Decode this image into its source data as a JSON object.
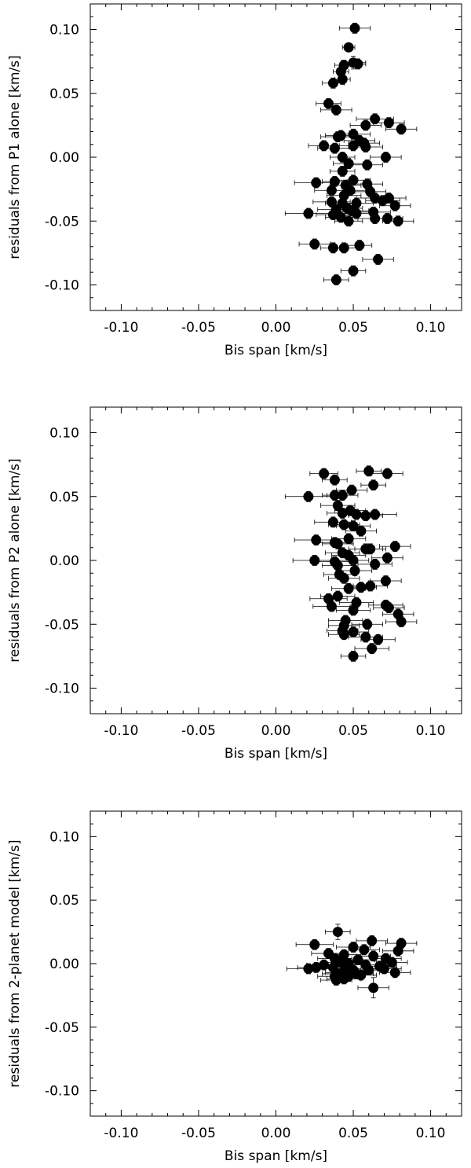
{
  "chart_data": [
    {
      "type": "scatter",
      "xlabel": "Bis span [km/s]",
      "ylabel": "residuals from P1 alone [km/s]",
      "xlim": [
        -0.12,
        0.12
      ],
      "ylim": [
        -0.12,
        0.12
      ],
      "xticks": [
        "-0.10",
        "-0.05",
        "0.00",
        "0.05",
        "0.10"
      ],
      "yticks": [
        "0.10",
        "0.05",
        "0.00",
        "-0.05",
        "-0.10"
      ],
      "points": [
        {
          "x": 0.051,
          "y": 0.101,
          "xerr": 0.01,
          "yerr": 0.004
        },
        {
          "x": 0.047,
          "y": 0.086,
          "xerr": 0.004,
          "yerr": 0.003
        },
        {
          "x": 0.044,
          "y": 0.072,
          "xerr": 0.006,
          "yerr": 0.004
        },
        {
          "x": 0.05,
          "y": 0.074,
          "xerr": 0.008,
          "yerr": 0.005
        },
        {
          "x": 0.053,
          "y": 0.073,
          "xerr": 0.005,
          "yerr": 0.004
        },
        {
          "x": 0.042,
          "y": 0.067,
          "xerr": 0.005,
          "yerr": 0.004
        },
        {
          "x": 0.043,
          "y": 0.061,
          "xerr": 0.005,
          "yerr": 0.004
        },
        {
          "x": 0.037,
          "y": 0.058,
          "xerr": 0.007,
          "yerr": 0.004
        },
        {
          "x": 0.034,
          "y": 0.042,
          "xerr": 0.008,
          "yerr": 0.004
        },
        {
          "x": 0.039,
          "y": 0.037,
          "xerr": 0.01,
          "yerr": 0.004
        },
        {
          "x": 0.064,
          "y": 0.03,
          "xerr": 0.012,
          "yerr": 0.004
        },
        {
          "x": 0.073,
          "y": 0.027,
          "xerr": 0.01,
          "yerr": 0.004
        },
        {
          "x": 0.081,
          "y": 0.022,
          "xerr": 0.01,
          "yerr": 0.004
        },
        {
          "x": 0.058,
          "y": 0.025,
          "xerr": 0.01,
          "yerr": 0.004
        },
        {
          "x": 0.05,
          "y": 0.018,
          "xerr": 0.011,
          "yerr": 0.004
        },
        {
          "x": 0.04,
          "y": 0.016,
          "xerr": 0.011,
          "yerr": 0.004
        },
        {
          "x": 0.042,
          "y": 0.017,
          "xerr": 0.01,
          "yerr": 0.004
        },
        {
          "x": 0.054,
          "y": 0.013,
          "xerr": 0.01,
          "yerr": 0.004
        },
        {
          "x": 0.057,
          "y": 0.011,
          "xerr": 0.01,
          "yerr": 0.004
        },
        {
          "x": 0.031,
          "y": 0.009,
          "xerr": 0.01,
          "yerr": 0.004
        },
        {
          "x": 0.038,
          "y": 0.007,
          "xerr": 0.011,
          "yerr": 0.004
        },
        {
          "x": 0.05,
          "y": 0.009,
          "xerr": 0.01,
          "yerr": 0.004
        },
        {
          "x": 0.058,
          "y": 0.008,
          "xerr": 0.011,
          "yerr": 0.004
        },
        {
          "x": 0.043,
          "y": 0.0,
          "xerr": 0.008,
          "yerr": 0.004
        },
        {
          "x": 0.071,
          "y": 0.0,
          "xerr": 0.01,
          "yerr": 0.004
        },
        {
          "x": 0.047,
          "y": -0.005,
          "xerr": 0.01,
          "yerr": 0.004
        },
        {
          "x": 0.059,
          "y": -0.006,
          "xerr": 0.01,
          "yerr": 0.004
        },
        {
          "x": 0.043,
          "y": -0.011,
          "xerr": 0.008,
          "yerr": 0.004
        },
        {
          "x": 0.026,
          "y": -0.02,
          "xerr": 0.014,
          "yerr": 0.004
        },
        {
          "x": 0.038,
          "y": -0.019,
          "xerr": 0.008,
          "yerr": 0.004
        },
        {
          "x": 0.05,
          "y": -0.018,
          "xerr": 0.011,
          "yerr": 0.004
        },
        {
          "x": 0.045,
          "y": -0.022,
          "xerr": 0.01,
          "yerr": 0.004
        },
        {
          "x": 0.059,
          "y": -0.021,
          "xerr": 0.01,
          "yerr": 0.004
        },
        {
          "x": 0.036,
          "y": -0.026,
          "xerr": 0.011,
          "yerr": 0.004
        },
        {
          "x": 0.048,
          "y": -0.026,
          "xerr": 0.01,
          "yerr": 0.004
        },
        {
          "x": 0.061,
          "y": -0.027,
          "xerr": 0.01,
          "yerr": 0.004
        },
        {
          "x": 0.044,
          "y": -0.03,
          "xerr": 0.011,
          "yerr": 0.004
        },
        {
          "x": 0.064,
          "y": -0.032,
          "xerr": 0.012,
          "yerr": 0.004
        },
        {
          "x": 0.073,
          "y": -0.032,
          "xerr": 0.011,
          "yerr": 0.004
        },
        {
          "x": 0.069,
          "y": -0.034,
          "xerr": 0.011,
          "yerr": 0.004
        },
        {
          "x": 0.036,
          "y": -0.035,
          "xerr": 0.012,
          "yerr": 0.004
        },
        {
          "x": 0.043,
          "y": -0.036,
          "xerr": 0.011,
          "yerr": 0.004
        },
        {
          "x": 0.052,
          "y": -0.036,
          "xerr": 0.011,
          "yerr": 0.004
        },
        {
          "x": 0.077,
          "y": -0.038,
          "xerr": 0.01,
          "yerr": 0.004
        },
        {
          "x": 0.046,
          "y": -0.04,
          "xerr": 0.01,
          "yerr": 0.004
        },
        {
          "x": 0.039,
          "y": -0.041,
          "xerr": 0.012,
          "yerr": 0.004
        },
        {
          "x": 0.049,
          "y": -0.042,
          "xerr": 0.011,
          "yerr": 0.004
        },
        {
          "x": 0.063,
          "y": -0.043,
          "xerr": 0.011,
          "yerr": 0.004
        },
        {
          "x": 0.052,
          "y": -0.044,
          "xerr": 0.01,
          "yerr": 0.004
        },
        {
          "x": 0.021,
          "y": -0.044,
          "xerr": 0.015,
          "yerr": 0.004
        },
        {
          "x": 0.037,
          "y": -0.045,
          "xerr": 0.011,
          "yerr": 0.004
        },
        {
          "x": 0.042,
          "y": -0.047,
          "xerr": 0.01,
          "yerr": 0.004
        },
        {
          "x": 0.064,
          "y": -0.048,
          "xerr": 0.011,
          "yerr": 0.004
        },
        {
          "x": 0.072,
          "y": -0.048,
          "xerr": 0.01,
          "yerr": 0.004
        },
        {
          "x": 0.047,
          "y": -0.05,
          "xerr": 0.009,
          "yerr": 0.004
        },
        {
          "x": 0.079,
          "y": -0.05,
          "xerr": 0.01,
          "yerr": 0.004
        },
        {
          "x": 0.025,
          "y": -0.068,
          "xerr": 0.01,
          "yerr": 0.004
        },
        {
          "x": 0.037,
          "y": -0.071,
          "xerr": 0.008,
          "yerr": 0.004
        },
        {
          "x": 0.044,
          "y": -0.071,
          "xerr": 0.008,
          "yerr": 0.004
        },
        {
          "x": 0.054,
          "y": -0.069,
          "xerr": 0.008,
          "yerr": 0.004
        },
        {
          "x": 0.066,
          "y": -0.08,
          "xerr": 0.01,
          "yerr": 0.004
        },
        {
          "x": 0.05,
          "y": -0.089,
          "xerr": 0.008,
          "yerr": 0.004
        },
        {
          "x": 0.039,
          "y": -0.096,
          "xerr": 0.008,
          "yerr": 0.004
        }
      ]
    },
    {
      "type": "scatter",
      "xlabel": "Bis span [km/s]",
      "ylabel": "residuals from P2 alone [km/s]",
      "xlim": [
        -0.12,
        0.12
      ],
      "ylim": [
        -0.12,
        0.12
      ],
      "xticks": [
        "-0.10",
        "-0.05",
        "0.00",
        "0.05",
        "0.10"
      ],
      "yticks": [
        "0.10",
        "0.05",
        "0.00",
        "-0.05",
        "-0.10"
      ],
      "points": [
        {
          "x": 0.031,
          "y": 0.068,
          "xerr": 0.009,
          "yerr": 0.004
        },
        {
          "x": 0.06,
          "y": 0.07,
          "xerr": 0.008,
          "yerr": 0.004
        },
        {
          "x": 0.072,
          "y": 0.068,
          "xerr": 0.01,
          "yerr": 0.004
        },
        {
          "x": 0.038,
          "y": 0.063,
          "xerr": 0.008,
          "yerr": 0.004
        },
        {
          "x": 0.063,
          "y": 0.059,
          "xerr": 0.008,
          "yerr": 0.004
        },
        {
          "x": 0.049,
          "y": 0.055,
          "xerr": 0.01,
          "yerr": 0.004
        },
        {
          "x": 0.021,
          "y": 0.05,
          "xerr": 0.015,
          "yerr": 0.004
        },
        {
          "x": 0.038,
          "y": 0.051,
          "xerr": 0.008,
          "yerr": 0.004
        },
        {
          "x": 0.043,
          "y": 0.051,
          "xerr": 0.01,
          "yerr": 0.004
        },
        {
          "x": 0.04,
          "y": 0.043,
          "xerr": 0.011,
          "yerr": 0.004
        },
        {
          "x": 0.048,
          "y": 0.039,
          "xerr": 0.01,
          "yerr": 0.004
        },
        {
          "x": 0.043,
          "y": 0.037,
          "xerr": 0.01,
          "yerr": 0.004
        },
        {
          "x": 0.052,
          "y": 0.036,
          "xerr": 0.01,
          "yerr": 0.004
        },
        {
          "x": 0.064,
          "y": 0.036,
          "xerr": 0.014,
          "yerr": 0.004
        },
        {
          "x": 0.058,
          "y": 0.035,
          "xerr": 0.011,
          "yerr": 0.004
        },
        {
          "x": 0.037,
          "y": 0.03,
          "xerr": 0.012,
          "yerr": 0.004
        },
        {
          "x": 0.044,
          "y": 0.028,
          "xerr": 0.01,
          "yerr": 0.004
        },
        {
          "x": 0.05,
          "y": 0.027,
          "xerr": 0.011,
          "yerr": 0.004
        },
        {
          "x": 0.055,
          "y": 0.023,
          "xerr": 0.01,
          "yerr": 0.004
        },
        {
          "x": 0.026,
          "y": 0.016,
          "xerr": 0.014,
          "yerr": 0.004
        },
        {
          "x": 0.038,
          "y": 0.014,
          "xerr": 0.011,
          "yerr": 0.004
        },
        {
          "x": 0.04,
          "y": 0.013,
          "xerr": 0.01,
          "yerr": 0.004
        },
        {
          "x": 0.047,
          "y": 0.017,
          "xerr": 0.011,
          "yerr": 0.004
        },
        {
          "x": 0.058,
          "y": 0.009,
          "xerr": 0.011,
          "yerr": 0.004
        },
        {
          "x": 0.061,
          "y": 0.009,
          "xerr": 0.01,
          "yerr": 0.004
        },
        {
          "x": 0.077,
          "y": 0.011,
          "xerr": 0.01,
          "yerr": 0.004
        },
        {
          "x": 0.043,
          "y": 0.006,
          "xerr": 0.011,
          "yerr": 0.004
        },
        {
          "x": 0.047,
          "y": 0.004,
          "xerr": 0.011,
          "yerr": 0.004
        },
        {
          "x": 0.072,
          "y": 0.002,
          "xerr": 0.01,
          "yerr": 0.004
        },
        {
          "x": 0.025,
          "y": 0.0,
          "xerr": 0.014,
          "yerr": 0.004
        },
        {
          "x": 0.038,
          "y": -0.001,
          "xerr": 0.011,
          "yerr": 0.004
        },
        {
          "x": 0.05,
          "y": 0.0,
          "xerr": 0.01,
          "yerr": 0.004
        },
        {
          "x": 0.04,
          "y": -0.004,
          "xerr": 0.01,
          "yerr": 0.004
        },
        {
          "x": 0.064,
          "y": -0.003,
          "xerr": 0.011,
          "yerr": 0.004
        },
        {
          "x": 0.051,
          "y": -0.008,
          "xerr": 0.011,
          "yerr": 0.004
        },
        {
          "x": 0.041,
          "y": -0.011,
          "xerr": 0.01,
          "yerr": 0.004
        },
        {
          "x": 0.044,
          "y": -0.014,
          "xerr": 0.01,
          "yerr": 0.004
        },
        {
          "x": 0.071,
          "y": -0.016,
          "xerr": 0.01,
          "yerr": 0.004
        },
        {
          "x": 0.061,
          "y": -0.02,
          "xerr": 0.011,
          "yerr": 0.004
        },
        {
          "x": 0.047,
          "y": -0.022,
          "xerr": 0.011,
          "yerr": 0.004
        },
        {
          "x": 0.055,
          "y": -0.021,
          "xerr": 0.01,
          "yerr": 0.004
        },
        {
          "x": 0.04,
          "y": -0.028,
          "xerr": 0.011,
          "yerr": 0.004
        },
        {
          "x": 0.034,
          "y": -0.03,
          "xerr": 0.012,
          "yerr": 0.004
        },
        {
          "x": 0.052,
          "y": -0.033,
          "xerr": 0.011,
          "yerr": 0.004
        },
        {
          "x": 0.036,
          "y": -0.036,
          "xerr": 0.012,
          "yerr": 0.004
        },
        {
          "x": 0.071,
          "y": -0.035,
          "xerr": 0.011,
          "yerr": 0.004
        },
        {
          "x": 0.073,
          "y": -0.037,
          "xerr": 0.01,
          "yerr": 0.004
        },
        {
          "x": 0.05,
          "y": -0.039,
          "xerr": 0.011,
          "yerr": 0.004
        },
        {
          "x": 0.079,
          "y": -0.042,
          "xerr": 0.01,
          "yerr": 0.004
        },
        {
          "x": 0.045,
          "y": -0.047,
          "xerr": 0.011,
          "yerr": 0.004
        },
        {
          "x": 0.081,
          "y": -0.048,
          "xerr": 0.01,
          "yerr": 0.004
        },
        {
          "x": 0.059,
          "y": -0.05,
          "xerr": 0.01,
          "yerr": 0.004
        },
        {
          "x": 0.044,
          "y": -0.051,
          "xerr": 0.01,
          "yerr": 0.004
        },
        {
          "x": 0.043,
          "y": -0.055,
          "xerr": 0.01,
          "yerr": 0.004
        },
        {
          "x": 0.05,
          "y": -0.056,
          "xerr": 0.01,
          "yerr": 0.004
        },
        {
          "x": 0.044,
          "y": -0.058,
          "xerr": 0.01,
          "yerr": 0.004
        },
        {
          "x": 0.058,
          "y": -0.06,
          "xerr": 0.011,
          "yerr": 0.004
        },
        {
          "x": 0.066,
          "y": -0.062,
          "xerr": 0.011,
          "yerr": 0.004
        },
        {
          "x": 0.062,
          "y": -0.069,
          "xerr": 0.011,
          "yerr": 0.004
        },
        {
          "x": 0.05,
          "y": -0.075,
          "xerr": 0.008,
          "yerr": 0.004
        }
      ]
    },
    {
      "type": "scatter",
      "xlabel": "Bis span [km/s]",
      "ylabel": "residuals from 2-planet model [km/s]",
      "xlim": [
        -0.12,
        0.12
      ],
      "ylim": [
        -0.12,
        0.12
      ],
      "xticks": [
        "-0.10",
        "-0.05",
        "0.00",
        "0.05",
        "0.10"
      ],
      "yticks": [
        "0.10",
        "0.05",
        "0.00",
        "-0.05",
        "-0.10"
      ],
      "points": [
        {
          "x": 0.04,
          "y": 0.025,
          "xerr": 0.008,
          "yerr": 0.006
        },
        {
          "x": 0.025,
          "y": 0.015,
          "xerr": 0.012,
          "yerr": 0.004
        },
        {
          "x": 0.062,
          "y": 0.018,
          "xerr": 0.01,
          "yerr": 0.004
        },
        {
          "x": 0.081,
          "y": 0.016,
          "xerr": 0.01,
          "yerr": 0.004
        },
        {
          "x": 0.05,
          "y": 0.013,
          "xerr": 0.011,
          "yerr": 0.004
        },
        {
          "x": 0.057,
          "y": 0.011,
          "xerr": 0.01,
          "yerr": 0.004
        },
        {
          "x": 0.079,
          "y": 0.01,
          "xerr": 0.01,
          "yerr": 0.004
        },
        {
          "x": 0.034,
          "y": 0.008,
          "xerr": 0.011,
          "yerr": 0.004
        },
        {
          "x": 0.044,
          "y": 0.007,
          "xerr": 0.011,
          "yerr": 0.004
        },
        {
          "x": 0.063,
          "y": 0.006,
          "xerr": 0.011,
          "yerr": 0.004
        },
        {
          "x": 0.071,
          "y": 0.004,
          "xerr": 0.01,
          "yerr": 0.004
        },
        {
          "x": 0.038,
          "y": 0.004,
          "xerr": 0.011,
          "yerr": 0.004
        },
        {
          "x": 0.053,
          "y": 0.003,
          "xerr": 0.011,
          "yerr": 0.004
        },
        {
          "x": 0.075,
          "y": 0.001,
          "xerr": 0.01,
          "yerr": 0.004
        },
        {
          "x": 0.042,
          "y": 0.001,
          "xerr": 0.01,
          "yerr": 0.004
        },
        {
          "x": 0.047,
          "y": 0.0,
          "xerr": 0.011,
          "yerr": 0.004
        },
        {
          "x": 0.058,
          "y": -0.001,
          "xerr": 0.011,
          "yerr": 0.004
        },
        {
          "x": 0.031,
          "y": -0.001,
          "xerr": 0.011,
          "yerr": 0.004
        },
        {
          "x": 0.067,
          "y": -0.002,
          "xerr": 0.011,
          "yerr": 0.004
        },
        {
          "x": 0.021,
          "y": -0.004,
          "xerr": 0.014,
          "yerr": 0.004
        },
        {
          "x": 0.026,
          "y": -0.003,
          "xerr": 0.012,
          "yerr": 0.004
        },
        {
          "x": 0.037,
          "y": -0.003,
          "xerr": 0.01,
          "yerr": 0.004
        },
        {
          "x": 0.045,
          "y": -0.004,
          "xerr": 0.01,
          "yerr": 0.004
        },
        {
          "x": 0.05,
          "y": -0.005,
          "xerr": 0.011,
          "yerr": 0.004
        },
        {
          "x": 0.06,
          "y": -0.005,
          "xerr": 0.011,
          "yerr": 0.004
        },
        {
          "x": 0.07,
          "y": -0.004,
          "xerr": 0.011,
          "yerr": 0.004
        },
        {
          "x": 0.077,
          "y": -0.007,
          "xerr": 0.01,
          "yerr": 0.004
        },
        {
          "x": 0.04,
          "y": -0.008,
          "xerr": 0.01,
          "yerr": 0.004
        },
        {
          "x": 0.043,
          "y": -0.007,
          "xerr": 0.011,
          "yerr": 0.004
        },
        {
          "x": 0.052,
          "y": -0.008,
          "xerr": 0.011,
          "yerr": 0.004
        },
        {
          "x": 0.038,
          "y": -0.01,
          "xerr": 0.011,
          "yerr": 0.004
        },
        {
          "x": 0.047,
          "y": -0.01,
          "xerr": 0.01,
          "yerr": 0.004
        },
        {
          "x": 0.055,
          "y": -0.009,
          "xerr": 0.01,
          "yerr": 0.004
        },
        {
          "x": 0.044,
          "y": -0.012,
          "xerr": 0.011,
          "yerr": 0.004
        },
        {
          "x": 0.039,
          "y": -0.013,
          "xerr": 0.01,
          "yerr": 0.004
        },
        {
          "x": 0.063,
          "y": -0.019,
          "xerr": 0.01,
          "yerr": 0.008
        }
      ]
    }
  ]
}
